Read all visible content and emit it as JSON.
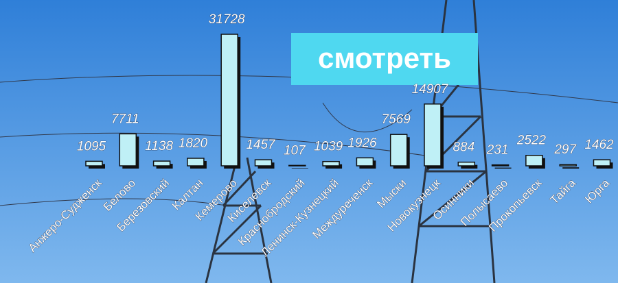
{
  "chart_data": {
    "type": "bar",
    "categories": [
      "Анжеро-Судженск",
      "Белово",
      "Березовский",
      "Калтан",
      "Кемерово",
      "Киселевск",
      "Краснобродский",
      "Ленинск-Кузнецкий",
      "Междуреченск",
      "Мыски",
      "Новокузнецк",
      "Осинники",
      "Полысаево",
      "Прокопьевск",
      "Тайга",
      "Юрга"
    ],
    "values": [
      1095,
      7711,
      1138,
      1820,
      31728,
      1457,
      107,
      1039,
      1926,
      7569,
      14907,
      884,
      231,
      2522,
      297,
      1462
    ],
    "color": "#bff0f6"
  },
  "button": {
    "label": "смотреть"
  }
}
